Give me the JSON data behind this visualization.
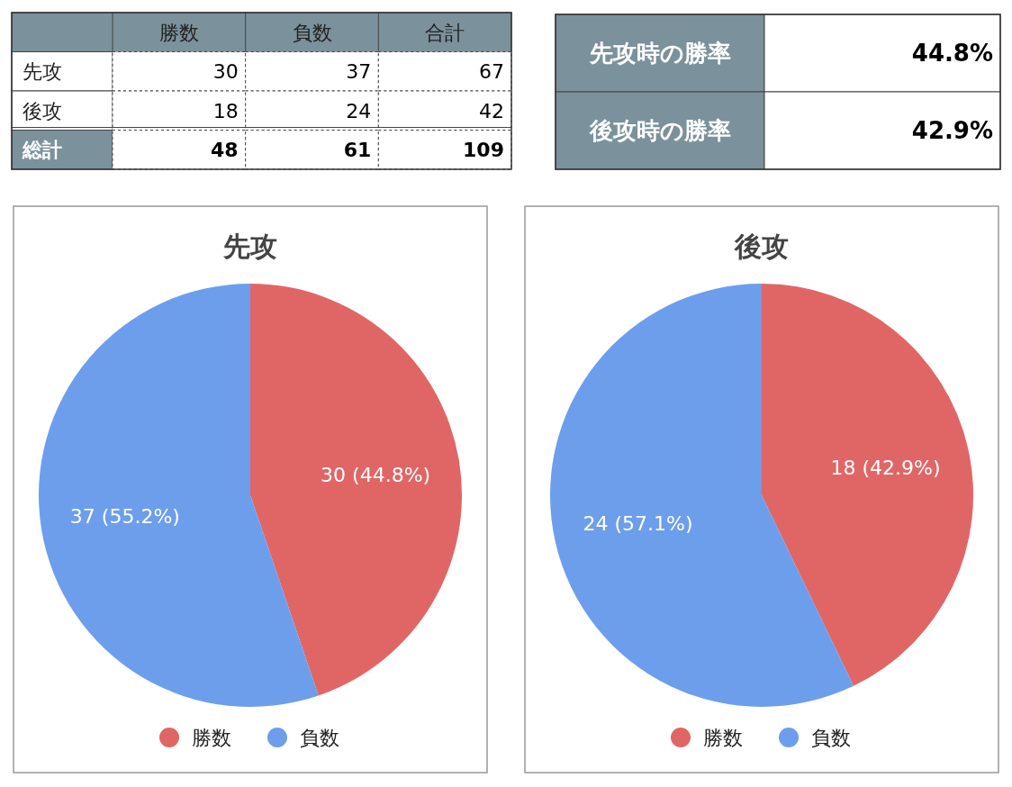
{
  "chart_data": [
    {
      "type": "other",
      "categories": [
        "勝数",
        "負数",
        "合計"
      ],
      "y_categories": [
        "先攻",
        "後攻",
        "総計"
      ],
      "cell_labels": [
        [
          "30",
          "37",
          "67"
        ],
        [
          "18",
          "24",
          "42"
        ],
        [
          "48",
          "61",
          "109"
        ]
      ]
    },
    {
      "type": "other",
      "y_categories": [
        "先攻時の勝率",
        "後攻時の勝率"
      ],
      "cell_labels": [
        [
          "44.8%"
        ],
        [
          "42.9%"
        ]
      ]
    },
    {
      "type": "pie",
      "title": "先攻",
      "categories": [
        "勝数",
        "負数"
      ],
      "values": [
        30,
        37
      ],
      "colors": [
        "#e06666",
        "#6d9eeb"
      ],
      "value_labels": [
        "30 (44.8%)",
        "37 (55.2%)"
      ],
      "legend": "bottom"
    },
    {
      "type": "pie",
      "title": "後攻",
      "categories": [
        "勝数",
        "負数"
      ],
      "values": [
        18,
        24
      ],
      "colors": [
        "#e06666",
        "#6d9eeb"
      ],
      "value_labels": [
        "18 (42.9%)",
        "24 (57.1%)"
      ],
      "legend": "bottom"
    }
  ]
}
